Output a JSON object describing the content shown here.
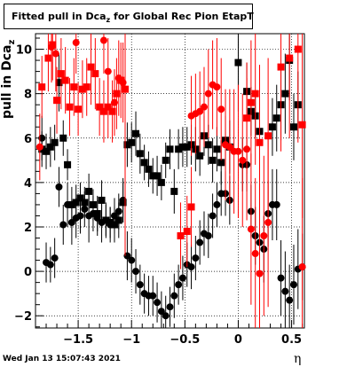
{
  "chart_data": {
    "type": "scatter",
    "title": "Fitted pull in Dca_z for Global Rec Pion EtapT",
    "title_main": "Fitted pull in Dca",
    "title_sub": "z",
    "title_rest": " for Global Rec Pion EtapT",
    "xlabel": "η",
    "ylabel": "pull in Dca",
    "ylabel_sub": "z",
    "xlim": [
      -1.9,
      0.62
    ],
    "ylim": [
      -2.55,
      10.7
    ],
    "xticks": [
      -1.5,
      -1,
      -0.5,
      0,
      0.5
    ],
    "xtick_labels": [
      "−1.5",
      "−1",
      "−0.5",
      "0",
      "0.5"
    ],
    "yticks": [
      -2,
      0,
      2,
      4,
      6,
      8,
      10
    ],
    "grid": true,
    "datestamp": "Wed Jan 13 15:07:43 2021",
    "colors": {
      "black": "#000000",
      "red": "#ff0000"
    },
    "series": [
      {
        "color": "#000000",
        "marker": "square",
        "points": [
          [
            -1.84,
            5.5,
            0.8
          ],
          [
            -1.8,
            5.4,
            0.8
          ],
          [
            -1.76,
            5.6,
            0.9
          ],
          [
            -1.72,
            5.8,
            0.8
          ],
          [
            -1.68,
            8.5,
            1.3
          ],
          [
            -1.64,
            6.0,
            0.8
          ],
          [
            -1.6,
            4.8,
            0.7
          ],
          [
            -1.56,
            3.0,
            0.8
          ],
          [
            -1.52,
            3.1,
            0.8
          ],
          [
            -1.48,
            3.3,
            0.7
          ],
          [
            -1.44,
            3.1,
            0.7
          ],
          [
            -1.4,
            3.6,
            0.8
          ],
          [
            -1.36,
            3.0,
            0.7
          ],
          [
            -1.32,
            2.6,
            0.8
          ],
          [
            -1.28,
            3.2,
            0.9
          ],
          [
            -1.24,
            2.3,
            0.7
          ],
          [
            -1.2,
            2.2,
            0.7
          ],
          [
            -1.16,
            2.1,
            0.8
          ],
          [
            -1.12,
            2.3,
            0.8
          ],
          [
            -1.08,
            3.1,
            0.9
          ],
          [
            -1.04,
            5.7,
            1.0
          ],
          [
            -1.0,
            5.8,
            0.9
          ],
          [
            -0.96,
            6.2,
            1.0
          ],
          [
            -0.92,
            5.3,
            0.9
          ],
          [
            -0.88,
            4.9,
            0.8
          ],
          [
            -0.84,
            4.6,
            0.8
          ],
          [
            -0.8,
            4.3,
            0.8
          ],
          [
            -0.76,
            4.3,
            0.9
          ],
          [
            -0.72,
            4.0,
            0.8
          ],
          [
            -0.68,
            5.0,
            0.8
          ],
          [
            -0.64,
            5.5,
            0.9
          ],
          [
            -0.6,
            3.6,
            1.0
          ],
          [
            -0.56,
            5.5,
            0.9
          ],
          [
            -0.52,
            5.6,
            0.9
          ],
          [
            -0.48,
            5.6,
            0.9
          ],
          [
            -0.44,
            5.7,
            0.9
          ],
          [
            -0.4,
            5.5,
            1.0
          ],
          [
            -0.36,
            5.2,
            0.9
          ],
          [
            -0.32,
            6.1,
            0.9
          ],
          [
            -0.28,
            5.7,
            0.9
          ],
          [
            -0.24,
            5.0,
            1.0
          ],
          [
            -0.2,
            5.5,
            1.0
          ],
          [
            -0.16,
            4.9,
            1.0
          ],
          [
            -0.12,
            5.9,
            1.1
          ],
          [
            -0.08,
            5.6,
            1.2
          ],
          [
            0.0,
            9.4,
            2.2
          ],
          [
            0.08,
            8.1,
            1.3
          ],
          [
            0.12,
            7.2,
            1.1
          ],
          [
            0.16,
            7.0,
            1.0
          ],
          [
            0.2,
            6.3,
            0.9
          ],
          [
            0.32,
            6.5,
            1.3
          ],
          [
            0.36,
            6.9,
            1.5
          ],
          [
            0.4,
            7.5,
            1.6
          ],
          [
            0.44,
            8.0,
            1.8
          ],
          [
            0.48,
            9.5,
            1.8
          ],
          [
            0.52,
            6.5,
            1.5
          ],
          [
            0.56,
            7.5,
            1.5
          ]
        ]
      },
      {
        "color": "#000000",
        "marker": "circle",
        "points": [
          [
            -1.84,
            6.0,
            1.0
          ],
          [
            -1.8,
            0.4,
            0.9
          ],
          [
            -1.76,
            0.3,
            0.8
          ],
          [
            -1.72,
            0.6,
            0.9
          ],
          [
            -1.68,
            3.8,
            0.9
          ],
          [
            -1.64,
            2.1,
            0.9
          ],
          [
            -1.6,
            3.0,
            1.0
          ],
          [
            -1.56,
            2.2,
            1.0
          ],
          [
            -1.52,
            2.4,
            0.9
          ],
          [
            -1.48,
            2.5,
            0.8
          ],
          [
            -1.44,
            2.8,
            0.8
          ],
          [
            -1.4,
            2.5,
            1.2
          ],
          [
            -1.36,
            2.6,
            0.8
          ],
          [
            -1.32,
            2.4,
            0.8
          ],
          [
            -1.28,
            2.2,
            0.9
          ],
          [
            -1.24,
            2.3,
            0.8
          ],
          [
            -1.2,
            2.1,
            0.8
          ],
          [
            -1.16,
            2.5,
            0.8
          ],
          [
            -1.12,
            2.7,
            0.8
          ],
          [
            -1.08,
            3.2,
            1.0
          ],
          [
            -1.04,
            0.7,
            1.1
          ],
          [
            -1.0,
            0.5,
            1.0
          ],
          [
            -0.96,
            0.0,
            1.0
          ],
          [
            -0.92,
            -0.6,
            0.9
          ],
          [
            -0.88,
            -1.0,
            0.9
          ],
          [
            -0.84,
            -1.1,
            0.9
          ],
          [
            -0.8,
            -1.1,
            0.9
          ],
          [
            -0.76,
            -1.4,
            0.9
          ],
          [
            -0.72,
            -1.8,
            0.9
          ],
          [
            -0.68,
            -2.0,
            0.9
          ],
          [
            -0.64,
            -1.6,
            0.9
          ],
          [
            -0.6,
            -1.1,
            1.0
          ],
          [
            -0.56,
            -0.6,
            0.9
          ],
          [
            -0.52,
            -0.3,
            1.0
          ],
          [
            -0.48,
            0.3,
            1.0
          ],
          [
            -0.44,
            0.2,
            1.0
          ],
          [
            -0.4,
            0.6,
            1.0
          ],
          [
            -0.36,
            1.3,
            1.0
          ],
          [
            -0.32,
            1.7,
            1.0
          ],
          [
            -0.28,
            1.6,
            1.0
          ],
          [
            -0.24,
            2.5,
            1.0
          ],
          [
            -0.2,
            3.0,
            1.0
          ],
          [
            -0.16,
            3.5,
            1.0
          ],
          [
            -0.12,
            3.5,
            1.0
          ],
          [
            -0.08,
            3.2,
            1.1
          ],
          [
            0.04,
            4.8,
            1.2
          ],
          [
            0.08,
            4.8,
            1.2
          ],
          [
            0.12,
            2.7,
            1.2
          ],
          [
            0.16,
            1.6,
            1.3
          ],
          [
            0.2,
            1.3,
            1.4
          ],
          [
            0.24,
            1.0,
            1.5
          ],
          [
            0.28,
            2.6,
            1.5
          ],
          [
            0.32,
            3.0,
            1.6
          ],
          [
            0.36,
            3.0,
            1.6
          ],
          [
            0.4,
            -0.3,
            1.7
          ],
          [
            0.44,
            -0.9,
            1.8
          ],
          [
            0.48,
            -1.3,
            1.6
          ],
          [
            0.52,
            -0.6,
            1.8
          ],
          [
            0.56,
            0.1,
            1.8
          ],
          [
            0.6,
            0.2,
            1.5
          ]
        ]
      },
      {
        "color": "#ff0000",
        "marker": "square",
        "points": [
          [
            -1.84,
            8.3,
            1.4
          ],
          [
            -1.78,
            9.6,
            1.5
          ],
          [
            -1.74,
            10.2,
            1.6
          ],
          [
            -1.7,
            7.7,
            1.5
          ],
          [
            -1.66,
            8.9,
            1.6
          ],
          [
            -1.62,
            8.6,
            1.5
          ],
          [
            -1.58,
            7.4,
            1.3
          ],
          [
            -1.54,
            8.3,
            1.3
          ],
          [
            -1.5,
            7.3,
            1.2
          ],
          [
            -1.46,
            8.2,
            1.3
          ],
          [
            -1.42,
            8.3,
            1.3
          ],
          [
            -1.38,
            9.2,
            1.7
          ],
          [
            -1.34,
            8.9,
            1.6
          ],
          [
            -1.3,
            7.4,
            1.3
          ],
          [
            -1.26,
            7.2,
            1.4
          ],
          [
            -1.22,
            7.4,
            1.4
          ],
          [
            -1.18,
            7.2,
            1.4
          ],
          [
            -1.14,
            8.0,
            1.6
          ],
          [
            -1.1,
            8.6,
            1.7
          ],
          [
            -1.06,
            8.2,
            7.5
          ],
          [
            -0.54,
            1.6,
            1.5
          ],
          [
            -0.48,
            1.8,
            1.6
          ],
          [
            -0.44,
            2.9,
            1.8
          ],
          [
            0.08,
            6.9,
            2.5
          ],
          [
            0.12,
            7.6,
            2.8
          ],
          [
            0.16,
            8.0,
            3.2
          ],
          [
            0.2,
            5.8,
            3.5
          ],
          [
            0.28,
            6.1,
            3.5
          ],
          [
            0.4,
            9.2,
            3.8
          ],
          [
            0.48,
            9.6,
            3.6
          ],
          [
            0.56,
            10.0,
            4.2
          ],
          [
            0.6,
            6.6,
            4.2
          ]
        ]
      },
      {
        "color": "#ff0000",
        "marker": "circle",
        "points": [
          [
            -1.86,
            5.6,
            1.5
          ],
          [
            -1.75,
            10.1,
            1.6
          ],
          [
            -1.71,
            9.8,
            1.7
          ],
          [
            -1.52,
            10.3,
            1.4
          ],
          [
            -1.26,
            10.4,
            1.5
          ],
          [
            -1.22,
            9.0,
            1.5
          ],
          [
            -1.16,
            7.6,
            1.5
          ],
          [
            -1.12,
            8.7,
            1.7
          ],
          [
            -1.08,
            8.5,
            1.8
          ],
          [
            -0.44,
            7.0,
            1.8
          ],
          [
            -0.4,
            7.1,
            1.8
          ],
          [
            -0.36,
            7.2,
            1.8
          ],
          [
            -0.32,
            7.4,
            1.8
          ],
          [
            -0.28,
            8.0,
            2.0
          ],
          [
            -0.24,
            8.4,
            2.0
          ],
          [
            -0.2,
            8.3,
            2.2
          ],
          [
            -0.16,
            7.3,
            2.3
          ],
          [
            -0.12,
            5.7,
            2.5
          ],
          [
            -0.08,
            5.6,
            2.6
          ],
          [
            -0.04,
            5.4,
            2.8
          ],
          [
            0.0,
            5.4,
            3.0
          ],
          [
            0.04,
            5.0,
            3.0
          ],
          [
            0.08,
            5.5,
            3.2
          ],
          [
            0.12,
            1.9,
            3.4
          ],
          [
            0.16,
            0.8,
            3.4
          ],
          [
            0.2,
            -0.1,
            3.5
          ],
          [
            0.24,
            1.6,
            3.6
          ],
          [
            0.28,
            2.2,
            3.8
          ],
          [
            0.6,
            0.2,
            4.0
          ]
        ]
      }
    ]
  }
}
